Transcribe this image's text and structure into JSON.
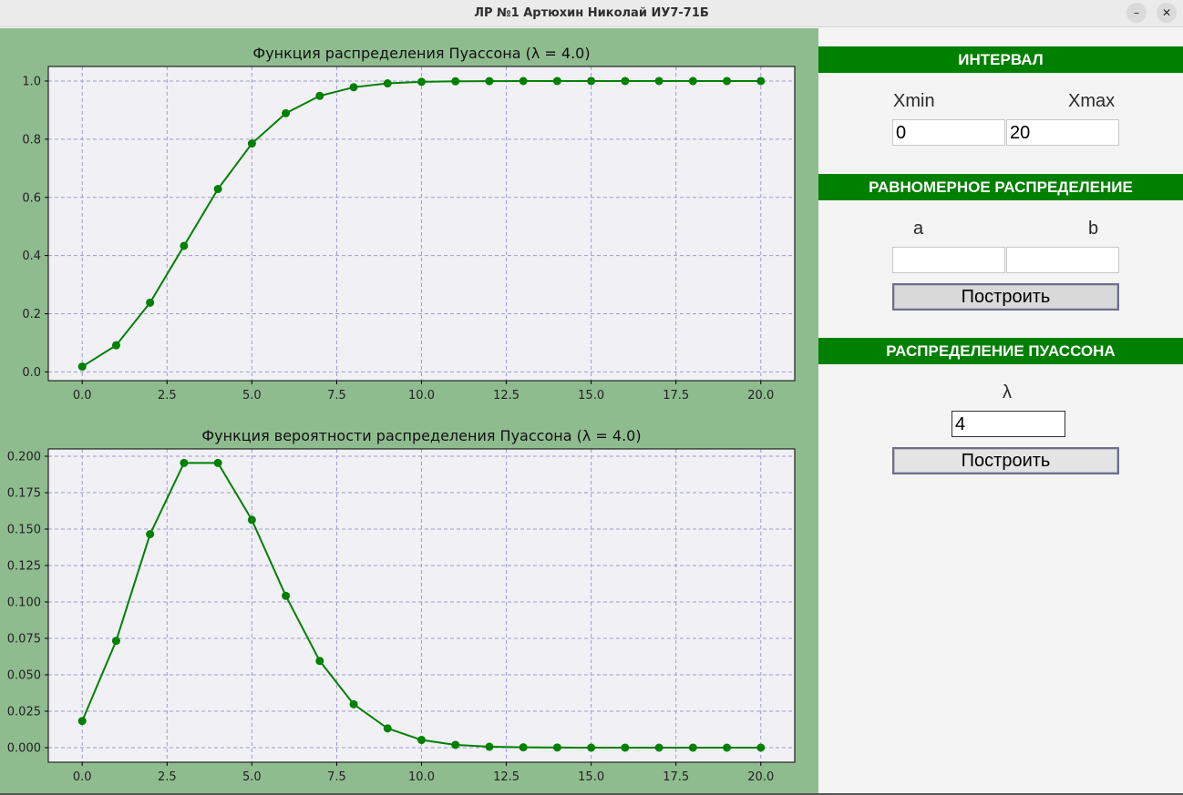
{
  "window": {
    "title": "ЛР №1 Артюхин Николай ИУ7-71Б",
    "minimize_glyph": "–",
    "close_glyph": "✕"
  },
  "colors": {
    "plot_background": "#8fbc8f",
    "axes_background": "#f0f0f5",
    "series": "#008000",
    "grid": "#9d9dcc",
    "header": "#008000"
  },
  "panel": {
    "interval": {
      "header": "ИНТЕРВАЛ",
      "xmin_label": "Xmin",
      "xmax_label": "Xmax",
      "xmin_value": "0",
      "xmax_value": "20"
    },
    "uniform": {
      "header": "РАВНОМЕРНОЕ РАСПРЕДЕЛЕНИЕ",
      "a_label": "a",
      "b_label": "b",
      "a_value": "",
      "b_value": "",
      "build_label": "Построить"
    },
    "poisson": {
      "header": "РАСПРЕДЕЛЕНИЕ ПУАССОНА",
      "lambda_label": "λ",
      "lambda_value": "4",
      "build_label": "Построить"
    }
  },
  "chart_data": [
    {
      "type": "line",
      "title": "Функция распределения Пуассона (λ = 4.0)",
      "xlabel": "",
      "ylabel": "",
      "xlim": [
        -1,
        21
      ],
      "ylim": [
        -0.03,
        1.05
      ],
      "xticks": [
        "0.0",
        "2.5",
        "5.0",
        "7.5",
        "10.0",
        "12.5",
        "15.0",
        "17.5",
        "20.0"
      ],
      "yticks": [
        "0.0",
        "0.2",
        "0.4",
        "0.6",
        "0.8",
        "1.0"
      ],
      "grid": true,
      "marker": "circle",
      "x": [
        0,
        1,
        2,
        3,
        4,
        5,
        6,
        7,
        8,
        9,
        10,
        11,
        12,
        13,
        14,
        15,
        16,
        17,
        18,
        19,
        20
      ],
      "y": [
        0.0183,
        0.0916,
        0.2381,
        0.4335,
        0.6288,
        0.7851,
        0.8893,
        0.9489,
        0.9786,
        0.9919,
        0.9972,
        0.9991,
        0.9997,
        0.9999,
        1.0,
        1.0,
        1.0,
        1.0,
        1.0,
        1.0,
        1.0
      ]
    },
    {
      "type": "line",
      "title": "Функция вероятности распределения Пуассона (λ = 4.0)",
      "xlabel": "",
      "ylabel": "",
      "xlim": [
        -1,
        21
      ],
      "ylim": [
        -0.01,
        0.205
      ],
      "xticks": [
        "0.0",
        "2.5",
        "5.0",
        "7.5",
        "10.0",
        "12.5",
        "15.0",
        "17.5",
        "20.0"
      ],
      "yticks": [
        "0.000",
        "0.025",
        "0.050",
        "0.075",
        "0.100",
        "0.125",
        "0.150",
        "0.175",
        "0.200"
      ],
      "grid": true,
      "marker": "circle",
      "x": [
        0,
        1,
        2,
        3,
        4,
        5,
        6,
        7,
        8,
        9,
        10,
        11,
        12,
        13,
        14,
        15,
        16,
        17,
        18,
        19,
        20
      ],
      "y": [
        0.0183,
        0.0733,
        0.1465,
        0.1954,
        0.1954,
        0.1563,
        0.1042,
        0.0595,
        0.0298,
        0.0132,
        0.0053,
        0.0019,
        0.0006,
        0.0002,
        0.0001,
        0.0,
        0.0,
        0.0,
        0.0,
        0.0,
        0.0
      ]
    }
  ]
}
